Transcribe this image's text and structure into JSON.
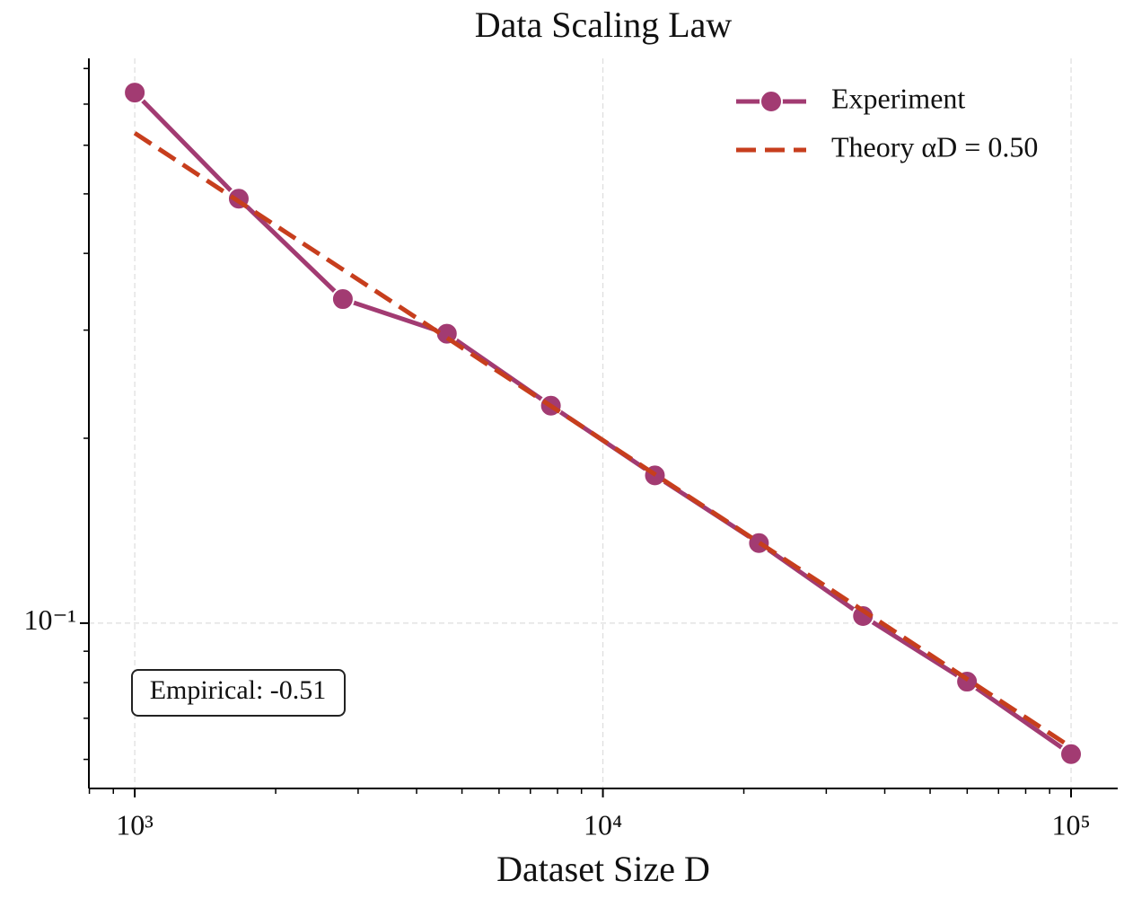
{
  "chart_data": {
    "type": "line",
    "title": "Data Scaling Law",
    "x_label": "Dataset Size D",
    "x": [
      1000,
      1668,
      2783,
      4642,
      7743,
      12915,
      21544,
      35938,
      59948,
      100000
    ],
    "series": [
      {
        "name": "Experiment",
        "color": "#a23b72",
        "style": "solid",
        "marker": true,
        "values": [
          0.731,
          0.491,
          0.337,
          0.296,
          0.226,
          0.174,
          0.135,
          0.1027,
          0.0803,
          0.0612
        ]
      },
      {
        "name": "Theory αD = 0.50",
        "color": "#c73e1d",
        "style": "dashed",
        "marker": false,
        "values": [
          0.628,
          0.486,
          0.3765,
          0.2915,
          0.2257,
          0.1747,
          0.1353,
          0.1048,
          0.0811,
          0.0628
        ]
      }
    ],
    "annotation": "Empirical: -0.51",
    "xscale": "log",
    "yscale": "log",
    "xlim": [
      798,
      125800
    ],
    "ylim": [
      0.0538,
      0.831
    ],
    "xticks": [
      {
        "value": 1000,
        "label": "10³"
      },
      {
        "value": 10000,
        "label": "10⁴"
      },
      {
        "value": 100000,
        "label": "10⁵"
      }
    ],
    "xminorticks": [
      800,
      900,
      2000,
      3000,
      4000,
      5000,
      6000,
      7000,
      8000,
      9000,
      20000,
      30000,
      40000,
      50000,
      60000,
      70000,
      80000,
      90000
    ],
    "yticks": [
      {
        "value": 0.1,
        "label": "10⁻¹"
      }
    ],
    "yminorticks": [
      0.06,
      0.07,
      0.08,
      0.09,
      0.2,
      0.3,
      0.4,
      0.5,
      0.6,
      0.7,
      0.8
    ],
    "grid": true,
    "legend": "upper right"
  }
}
